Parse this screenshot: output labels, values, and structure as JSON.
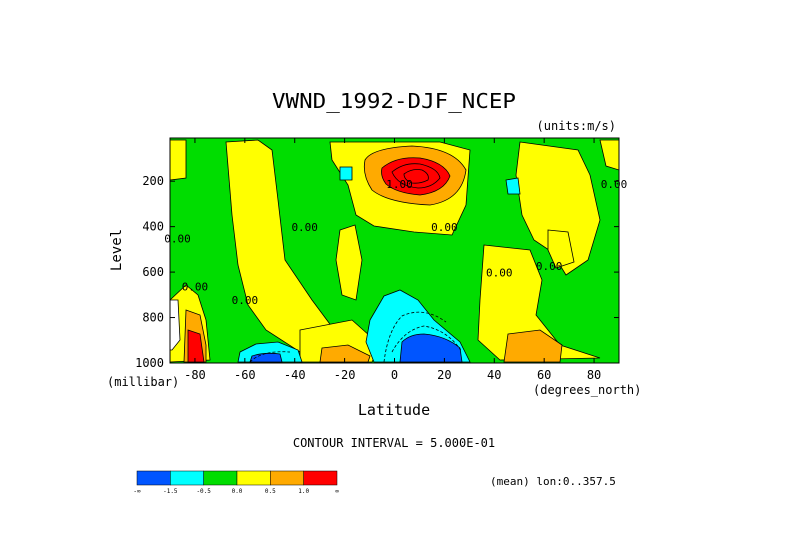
{
  "chart_data": {
    "type": "heatmap",
    "title": "VWND_1992-DJF_NCEP",
    "units_label": "(units:m/s)",
    "xlabel": "Latitude",
    "ylabel": "Level",
    "x_unit_label": "(degrees_north)",
    "y_unit_label": "(millibar)",
    "xlim": [
      -90,
      90
    ],
    "ylim": [
      1000,
      10
    ],
    "x_ticks": [
      {
        "value": -80,
        "label": "-80"
      },
      {
        "value": -60,
        "label": "-60"
      },
      {
        "value": -40,
        "label": "-40"
      },
      {
        "value": -20,
        "label": "-20"
      },
      {
        "value": 0,
        "label": "0"
      },
      {
        "value": 20,
        "label": "20"
      },
      {
        "value": 40,
        "label": "40"
      },
      {
        "value": 60,
        "label": "60"
      },
      {
        "value": 80,
        "label": "80"
      }
    ],
    "y_ticks": [
      {
        "value": 200,
        "label": "200"
      },
      {
        "value": 400,
        "label": "400"
      },
      {
        "value": 600,
        "label": "600"
      },
      {
        "value": 800,
        "label": "800"
      },
      {
        "value": 1000,
        "label": "1000"
      }
    ],
    "contour_interval_text": "CONTOUR INTERVAL = 5.000E-01",
    "mean_text": "(mean) lon:0..357.5",
    "colorbar": {
      "colors": [
        "#0055ff",
        "#00ffff",
        "#00dd00",
        "#ffff00",
        "#ffaa00",
        "#ff0000"
      ],
      "labels": [
        "-∞",
        "-1.5",
        "-0.5",
        "0.0",
        "0.5",
        "1.0",
        "∞"
      ]
    },
    "contour_labels": [
      {
        "text": "1.00",
        "lat": 2,
        "lev": 230
      },
      {
        "text": "0.00",
        "lat": 20,
        "lev": 420
      },
      {
        "text": "0.00",
        "lat": -36,
        "lev": 420
      },
      {
        "text": "0.00",
        "lat": 42,
        "lev": 620
      },
      {
        "text": "0.00",
        "lat": 62,
        "lev": 590
      },
      {
        "text": "0.00",
        "lat": -80,
        "lev": 680
      },
      {
        "text": "0.00",
        "lat": -60,
        "lev": 740
      },
      {
        "text": "0.00",
        "lat": 88,
        "lev": 230
      },
      {
        "text": "0.00",
        "lat": -87,
        "lev": 470
      }
    ]
  }
}
